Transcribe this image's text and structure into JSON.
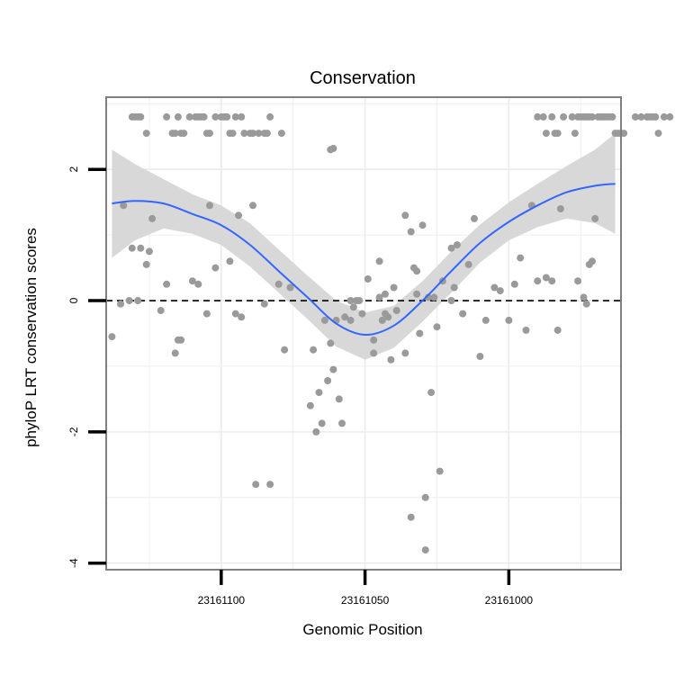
{
  "chart_data": {
    "type": "scatter",
    "title": "Conservation",
    "xlabel": "Genomic Position",
    "ylabel": "phyloP LRT conservation scores",
    "x_reversed": true,
    "xlim": [
      23161140,
      23160961
    ],
    "ylim": [
      -4.1,
      3.1
    ],
    "grid": true,
    "legend": "none",
    "x_ticks": [
      23161100,
      23161050,
      23161000
    ],
    "y_ticks": [
      -4,
      -2,
      0,
      2
    ],
    "x_tick_labels": [
      "23161100",
      "23161050",
      "23161000"
    ],
    "y_tick_labels": [
      "-4",
      "-2",
      "0",
      "2"
    ],
    "reference_line": {
      "y": 0,
      "style": "dashed"
    },
    "colors": {
      "points": "#9a9a9a",
      "smooth": "#3366ff",
      "band": "#d6d6d6",
      "panel_border": "#7f7f7f",
      "grid": "#ebebeb"
    },
    "points": [
      {
        "x": 23161131,
        "y": 2.8
      },
      {
        "x": 23161130,
        "y": 2.8
      },
      {
        "x": 23161129,
        "y": 2.8
      },
      {
        "x": 23161128,
        "y": 2.8
      },
      {
        "x": 23161126,
        "y": 2.55
      },
      {
        "x": 23161119,
        "y": 2.8
      },
      {
        "x": 23161117,
        "y": 2.55
      },
      {
        "x": 23161116,
        "y": 2.55
      },
      {
        "x": 23161115,
        "y": 2.8
      },
      {
        "x": 23161114,
        "y": 2.55
      },
      {
        "x": 23161113,
        "y": 2.55
      },
      {
        "x": 23161111,
        "y": 2.8
      },
      {
        "x": 23161109,
        "y": 2.8
      },
      {
        "x": 23161108,
        "y": 2.8
      },
      {
        "x": 23161107,
        "y": 2.8
      },
      {
        "x": 23161106,
        "y": 2.8
      },
      {
        "x": 23161105,
        "y": 2.55
      },
      {
        "x": 23161104,
        "y": 2.55
      },
      {
        "x": 23161102,
        "y": 2.8
      },
      {
        "x": 23161100,
        "y": 2.8
      },
      {
        "x": 23161099,
        "y": 2.8
      },
      {
        "x": 23161098,
        "y": 2.8
      },
      {
        "x": 23161097,
        "y": 2.55
      },
      {
        "x": 23161096,
        "y": 2.55
      },
      {
        "x": 23161095,
        "y": 2.8
      },
      {
        "x": 23161093,
        "y": 2.8
      },
      {
        "x": 23161092,
        "y": 2.55
      },
      {
        "x": 23161090,
        "y": 2.55
      },
      {
        "x": 23161089,
        "y": 2.55
      },
      {
        "x": 23161087,
        "y": 2.55
      },
      {
        "x": 23161085,
        "y": 2.55
      },
      {
        "x": 23161084,
        "y": 2.55
      },
      {
        "x": 23161083,
        "y": 2.8
      },
      {
        "x": 23161079,
        "y": 2.55
      },
      {
        "x": 23160990,
        "y": 2.8
      },
      {
        "x": 23160988,
        "y": 2.8
      },
      {
        "x": 23160987,
        "y": 2.55
      },
      {
        "x": 23160985,
        "y": 2.8
      },
      {
        "x": 23160984,
        "y": 2.55
      },
      {
        "x": 23160983,
        "y": 2.55
      },
      {
        "x": 23160981,
        "y": 2.8
      },
      {
        "x": 23160978,
        "y": 2.8
      },
      {
        "x": 23160977,
        "y": 2.55
      },
      {
        "x": 23160976,
        "y": 2.8
      },
      {
        "x": 23160975,
        "y": 2.8
      },
      {
        "x": 23160974,
        "y": 2.8
      },
      {
        "x": 23160973,
        "y": 2.8
      },
      {
        "x": 23160972,
        "y": 2.8
      },
      {
        "x": 23160971,
        "y": 2.8
      },
      {
        "x": 23160969,
        "y": 2.8
      },
      {
        "x": 23160968,
        "y": 2.8
      },
      {
        "x": 23160967,
        "y": 2.8
      },
      {
        "x": 23160966,
        "y": 2.8
      },
      {
        "x": 23160965,
        "y": 2.8
      },
      {
        "x": 23160964,
        "y": 2.8
      },
      {
        "x": 23160963,
        "y": 2.55
      },
      {
        "x": 23160962,
        "y": 2.55
      },
      {
        "x": 23160961,
        "y": 2.55
      },
      {
        "x": 23160960,
        "y": 2.55
      },
      {
        "x": 23160956,
        "y": 2.8
      },
      {
        "x": 23160954,
        "y": 2.8
      },
      {
        "x": 23160952,
        "y": 2.8
      },
      {
        "x": 23160951,
        "y": 2.8
      },
      {
        "x": 23160950,
        "y": 2.8
      },
      {
        "x": 23160949,
        "y": 2.8
      },
      {
        "x": 23160948,
        "y": 2.55
      },
      {
        "x": 23160946,
        "y": 2.8
      },
      {
        "x": 23160944,
        "y": 2.8
      },
      {
        "x": 23161062,
        "y": 2.3
      },
      {
        "x": 23161061,
        "y": 2.32
      },
      {
        "x": 23161069,
        "y": -1.6
      },
      {
        "x": 23161068,
        "y": -0.75
      },
      {
        "x": 23161067,
        "y": -2.0
      },
      {
        "x": 23161066,
        "y": -1.4
      },
      {
        "x": 23161065,
        "y": -1.87
      },
      {
        "x": 23161064,
        "y": -0.3
      },
      {
        "x": 23161063,
        "y": -1.22
      },
      {
        "x": 23161062,
        "y": -0.65
      },
      {
        "x": 23161061,
        "y": -1.05
      },
      {
        "x": 23161060,
        "y": -0.3
      },
      {
        "x": 23161059,
        "y": -1.5
      },
      {
        "x": 23161058,
        "y": -1.87
      },
      {
        "x": 23161057,
        "y": -0.25
      },
      {
        "x": 23161055,
        "y": -0.3
      },
      {
        "x": 23161054,
        "y": -0.1
      },
      {
        "x": 23161053,
        "y": 0.0
      },
      {
        "x": 23161052,
        "y": 0.0
      },
      {
        "x": 23161051,
        "y": -0.2
      },
      {
        "x": 23161049,
        "y": 0.33
      },
      {
        "x": 23161047,
        "y": -0.8
      },
      {
        "x": 23161045,
        "y": 0.05
      },
      {
        "x": 23161044,
        "y": -0.3
      },
      {
        "x": 23161043,
        "y": -0.2
      },
      {
        "x": 23161042,
        "y": -0.25
      },
      {
        "x": 23161040,
        "y": 0.2
      },
      {
        "x": 23161039,
        "y": -0.15
      },
      {
        "x": 23161036,
        "y": 1.3
      },
      {
        "x": 23161034,
        "y": 1.05
      },
      {
        "x": 23161033,
        "y": 0.5
      },
      {
        "x": 23161032,
        "y": 0.45
      },
      {
        "x": 23161031,
        "y": -0.5
      },
      {
        "x": 23161030,
        "y": 1.15
      },
      {
        "x": 23161028,
        "y": 0.05
      },
      {
        "x": 23161027,
        "y": -1.4
      },
      {
        "x": 23161025,
        "y": -0.4
      },
      {
        "x": 23161020,
        "y": 0.0
      },
      {
        "x": 23161045,
        "y": 0.6
      },
      {
        "x": 23161041,
        "y": -0.9
      },
      {
        "x": 23161036,
        "y": -0.8
      },
      {
        "x": 23161047,
        "y": -0.6
      },
      {
        "x": 23161043,
        "y": 0.1
      },
      {
        "x": 23161055,
        "y": 0.0
      },
      {
        "x": 23161024,
        "y": -2.6
      },
      {
        "x": 23161034,
        "y": -3.3
      },
      {
        "x": 23161029,
        "y": -3.0
      },
      {
        "x": 23161029,
        "y": -3.8
      },
      {
        "x": 23161032,
        "y": 0.1
      },
      {
        "x": 23161026,
        "y": 0.05
      },
      {
        "x": 23161023,
        "y": 0.3
      },
      {
        "x": 23161019,
        "y": 0.2
      },
      {
        "x": 23161020,
        "y": 0.8
      },
      {
        "x": 23161018,
        "y": 0.85
      },
      {
        "x": 23161016,
        "y": -0.2
      },
      {
        "x": 23161014,
        "y": 0.55
      },
      {
        "x": 23161012,
        "y": 1.25
      },
      {
        "x": 23161010,
        "y": -0.85
      },
      {
        "x": 23161008,
        "y": -0.3
      },
      {
        "x": 23161005,
        "y": 0.2
      },
      {
        "x": 23161003,
        "y": 0.15
      },
      {
        "x": 23161000,
        "y": -0.3
      },
      {
        "x": 23160998,
        "y": 0.25
      },
      {
        "x": 23160996,
        "y": 0.65
      },
      {
        "x": 23160994,
        "y": -0.45
      },
      {
        "x": 23160992,
        "y": 1.45
      },
      {
        "x": 23160990,
        "y": 0.3
      },
      {
        "x": 23160987,
        "y": 0.35
      },
      {
        "x": 23160985,
        "y": 0.3
      },
      {
        "x": 23160983,
        "y": -0.45
      },
      {
        "x": 23160982,
        "y": 1.4
      },
      {
        "x": 23160976,
        "y": 0.3
      },
      {
        "x": 23160974,
        "y": 0.05
      },
      {
        "x": 23160973,
        "y": -0.05
      },
      {
        "x": 23160972,
        "y": 0.55
      },
      {
        "x": 23160971,
        "y": 0.6
      },
      {
        "x": 23160970,
        "y": 1.25
      },
      {
        "x": 23161138,
        "y": -0.55
      },
      {
        "x": 23161135,
        "y": -0.05
      },
      {
        "x": 23161134,
        "y": 1.45
      },
      {
        "x": 23161132,
        "y": 0.0
      },
      {
        "x": 23161131,
        "y": 0.8
      },
      {
        "x": 23161129,
        "y": 0.0
      },
      {
        "x": 23161128,
        "y": 0.8
      },
      {
        "x": 23161126,
        "y": 0.55
      },
      {
        "x": 23161125,
        "y": 0.75
      },
      {
        "x": 23161124,
        "y": 1.25
      },
      {
        "x": 23161121,
        "y": -0.15
      },
      {
        "x": 23161119,
        "y": 0.25
      },
      {
        "x": 23161116,
        "y": -0.8
      },
      {
        "x": 23161115,
        "y": -0.6
      },
      {
        "x": 23161114,
        "y": -0.6
      },
      {
        "x": 23161110,
        "y": 0.3
      },
      {
        "x": 23161108,
        "y": 0.25
      },
      {
        "x": 23161105,
        "y": -0.2
      },
      {
        "x": 23161104,
        "y": 1.45
      },
      {
        "x": 23161102,
        "y": 0.5
      },
      {
        "x": 23161097,
        "y": 0.6
      },
      {
        "x": 23161095,
        "y": -0.2
      },
      {
        "x": 23161094,
        "y": 1.3
      },
      {
        "x": 23161093,
        "y": -0.25
      },
      {
        "x": 23161089,
        "y": 1.45
      },
      {
        "x": 23161088,
        "y": -2.8
      },
      {
        "x": 23161085,
        "y": -0.05
      },
      {
        "x": 23161083,
        "y": -2.8
      },
      {
        "x": 23161080,
        "y": 0.25
      },
      {
        "x": 23161078,
        "y": -0.75
      },
      {
        "x": 23161076,
        "y": 0.2
      }
    ],
    "smooth_line": [
      {
        "x": 23161138,
        "y": 1.48
      },
      {
        "x": 23161130,
        "y": 1.52
      },
      {
        "x": 23161120,
        "y": 1.48
      },
      {
        "x": 23161110,
        "y": 1.32
      },
      {
        "x": 23161100,
        "y": 1.15
      },
      {
        "x": 23161090,
        "y": 0.85
      },
      {
        "x": 23161080,
        "y": 0.45
      },
      {
        "x": 23161070,
        "y": 0.05
      },
      {
        "x": 23161060,
        "y": -0.35
      },
      {
        "x": 23161050,
        "y": -0.52
      },
      {
        "x": 23161040,
        "y": -0.38
      },
      {
        "x": 23161030,
        "y": 0.0
      },
      {
        "x": 23161020,
        "y": 0.45
      },
      {
        "x": 23161010,
        "y": 0.88
      },
      {
        "x": 23161000,
        "y": 1.2
      },
      {
        "x": 23160990,
        "y": 1.45
      },
      {
        "x": 23160980,
        "y": 1.65
      },
      {
        "x": 23160970,
        "y": 1.75
      },
      {
        "x": 23160963,
        "y": 1.78
      }
    ],
    "band_upper": [
      {
        "x": 23161138,
        "y": 2.3
      },
      {
        "x": 23161130,
        "y": 2.08
      },
      {
        "x": 23161120,
        "y": 1.85
      },
      {
        "x": 23161110,
        "y": 1.62
      },
      {
        "x": 23161100,
        "y": 1.45
      },
      {
        "x": 23161090,
        "y": 1.18
      },
      {
        "x": 23161080,
        "y": 0.78
      },
      {
        "x": 23161070,
        "y": 0.38
      },
      {
        "x": 23161060,
        "y": 0.0
      },
      {
        "x": 23161050,
        "y": -0.18
      },
      {
        "x": 23161040,
        "y": -0.08
      },
      {
        "x": 23161030,
        "y": 0.3
      },
      {
        "x": 23161020,
        "y": 0.75
      },
      {
        "x": 23161010,
        "y": 1.16
      },
      {
        "x": 23161000,
        "y": 1.5
      },
      {
        "x": 23160990,
        "y": 1.78
      },
      {
        "x": 23160980,
        "y": 2.05
      },
      {
        "x": 23160970,
        "y": 2.3
      },
      {
        "x": 23160963,
        "y": 2.55
      }
    ],
    "band_lower": [
      {
        "x": 23161138,
        "y": 0.65
      },
      {
        "x": 23161130,
        "y": 0.92
      },
      {
        "x": 23161120,
        "y": 1.1
      },
      {
        "x": 23161110,
        "y": 1.02
      },
      {
        "x": 23161100,
        "y": 0.85
      },
      {
        "x": 23161090,
        "y": 0.52
      },
      {
        "x": 23161080,
        "y": 0.12
      },
      {
        "x": 23161070,
        "y": -0.28
      },
      {
        "x": 23161060,
        "y": -0.7
      },
      {
        "x": 23161050,
        "y": -0.9
      },
      {
        "x": 23161040,
        "y": -0.72
      },
      {
        "x": 23161030,
        "y": -0.32
      },
      {
        "x": 23161020,
        "y": 0.12
      },
      {
        "x": 23161010,
        "y": 0.58
      },
      {
        "x": 23161000,
        "y": 0.92
      },
      {
        "x": 23160990,
        "y": 1.12
      },
      {
        "x": 23160980,
        "y": 1.25
      },
      {
        "x": 23160970,
        "y": 1.18
      },
      {
        "x": 23160963,
        "y": 1.02
      }
    ]
  }
}
